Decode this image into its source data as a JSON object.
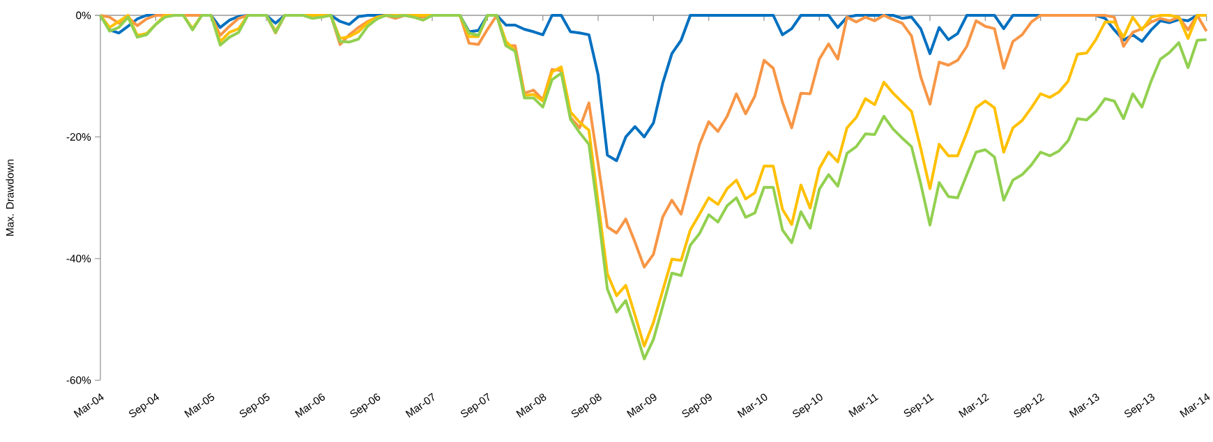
{
  "chart_data": {
    "type": "line",
    "ylabel": "Max. Drawdown",
    "ylim": [
      -60,
      0
    ],
    "yticks": [
      {
        "value": 0,
        "label": "0%"
      },
      {
        "value": -20,
        "label": "-20%"
      },
      {
        "value": -40,
        "label": "-40%"
      },
      {
        "value": -60,
        "label": "-60%"
      }
    ],
    "xlim": [
      "2004-03",
      "2014-03"
    ],
    "xticks": [
      {
        "value": "2004-03",
        "label": "Mar-04"
      },
      {
        "value": "2004-09",
        "label": "Sep-04"
      },
      {
        "value": "2005-03",
        "label": "Mar-05"
      },
      {
        "value": "2005-09",
        "label": "Sep-05"
      },
      {
        "value": "2006-03",
        "label": "Mar-06"
      },
      {
        "value": "2006-09",
        "label": "Sep-06"
      },
      {
        "value": "2007-03",
        "label": "Mar-07"
      },
      {
        "value": "2007-09",
        "label": "Sep-07"
      },
      {
        "value": "2008-03",
        "label": "Mar-08"
      },
      {
        "value": "2008-09",
        "label": "Sep-08"
      },
      {
        "value": "2009-03",
        "label": "Mar-09"
      },
      {
        "value": "2009-09",
        "label": "Sep-09"
      },
      {
        "value": "2010-03",
        "label": "Mar-10"
      },
      {
        "value": "2010-09",
        "label": "Sep-10"
      },
      {
        "value": "2011-03",
        "label": "Mar-11"
      },
      {
        "value": "2011-09",
        "label": "Sep-11"
      },
      {
        "value": "2012-03",
        "label": "Mar-12"
      },
      {
        "value": "2012-09",
        "label": "Sep-12"
      },
      {
        "value": "2013-03",
        "label": "Mar-13"
      },
      {
        "value": "2013-09",
        "label": "Sep-13"
      },
      {
        "value": "2014-03",
        "label": "Mar-14"
      }
    ],
    "x": [
      "2004-03",
      "2004-04",
      "2004-05",
      "2004-06",
      "2004-07",
      "2004-08",
      "2004-09",
      "2004-10",
      "2004-11",
      "2004-12",
      "2005-01",
      "2005-02",
      "2005-03",
      "2005-04",
      "2005-05",
      "2005-06",
      "2005-07",
      "2005-08",
      "2005-09",
      "2005-10",
      "2005-11",
      "2005-12",
      "2006-01",
      "2006-02",
      "2006-03",
      "2006-04",
      "2006-05",
      "2006-06",
      "2006-07",
      "2006-08",
      "2006-09",
      "2006-10",
      "2006-11",
      "2006-12",
      "2007-01",
      "2007-02",
      "2007-03",
      "2007-04",
      "2007-05",
      "2007-06",
      "2007-07",
      "2007-08",
      "2007-09",
      "2007-10",
      "2007-11",
      "2007-12",
      "2008-01",
      "2008-02",
      "2008-03",
      "2008-04",
      "2008-05",
      "2008-06",
      "2008-07",
      "2008-08",
      "2008-09",
      "2008-10",
      "2008-11",
      "2008-12",
      "2009-01",
      "2009-02",
      "2009-03",
      "2009-04",
      "2009-05",
      "2009-06",
      "2009-07",
      "2009-08",
      "2009-09",
      "2009-10",
      "2009-11",
      "2009-12",
      "2010-01",
      "2010-02",
      "2010-03",
      "2010-04",
      "2010-05",
      "2010-06",
      "2010-07",
      "2010-08",
      "2010-09",
      "2010-10",
      "2010-11",
      "2010-12",
      "2011-01",
      "2011-02",
      "2011-03",
      "2011-04",
      "2011-05",
      "2011-06",
      "2011-07",
      "2011-08",
      "2011-09",
      "2011-10",
      "2011-11",
      "2011-12",
      "2012-01",
      "2012-02",
      "2012-03",
      "2012-04",
      "2012-05",
      "2012-06",
      "2012-07",
      "2012-08",
      "2012-09",
      "2012-10",
      "2012-11",
      "2012-12",
      "2013-01",
      "2013-02",
      "2013-03",
      "2013-04",
      "2013-05",
      "2013-06",
      "2013-07",
      "2013-08",
      "2013-09",
      "2013-10",
      "2013-11",
      "2013-12",
      "2014-01",
      "2014-02",
      "2014-03"
    ],
    "series": [
      {
        "color": "#0070c0",
        "values": [
          0,
          -2.4,
          -2.9,
          -1.8,
          -0.6,
          0,
          0,
          0,
          0,
          0,
          0,
          0,
          0,
          -2.0,
          -0.8,
          -0.2,
          0,
          0,
          0,
          -1.3,
          0,
          0,
          0,
          0,
          0,
          0,
          -1.0,
          -1.5,
          -0.2,
          0,
          0,
          0,
          0,
          0,
          0,
          0,
          0,
          0,
          0,
          0,
          -2.7,
          -2.5,
          0,
          0,
          -1.6,
          -1.6,
          -2.3,
          -2.7,
          -3.2,
          0,
          0,
          -2.7,
          -2.9,
          -3.2,
          -9.8,
          -23.0,
          -23.9,
          -20.0,
          -18.3,
          -20.0,
          -17.7,
          -11.2,
          -6.3,
          -4.1,
          0,
          0,
          0,
          0,
          0,
          0,
          0,
          0,
          0,
          0,
          -3.2,
          -2.2,
          0,
          0,
          0,
          0,
          -2.0,
          -0.3,
          0,
          0,
          0,
          0,
          0,
          -0.5,
          -0.3,
          -2.2,
          -6.3,
          -2.0,
          -4.0,
          -3.0,
          0,
          0,
          0,
          0,
          -2.2,
          0,
          0,
          0,
          0,
          0,
          0,
          0,
          0,
          0,
          0,
          -0.5,
          -2.4,
          -4.1,
          -3.2,
          -4.3,
          -2.4,
          -0.9,
          -1.2,
          -0.7,
          -0.9,
          0,
          0
        ]
      },
      {
        "color": "#f79646",
        "values": [
          0,
          -0.3,
          -1.3,
          -0.3,
          -1.7,
          -0.6,
          0,
          0,
          0,
          0,
          0,
          0,
          0,
          -3.3,
          -1.8,
          -0.5,
          0,
          0,
          0,
          -2.9,
          0,
          0,
          0,
          0,
          0,
          0,
          -4.8,
          -3.2,
          -2.0,
          -1.0,
          -0.3,
          0,
          -0.5,
          0,
          -0.3,
          -0.3,
          0,
          0,
          0,
          0,
          -4.6,
          -4.8,
          -2.3,
          0,
          -5.0,
          -5.0,
          -12.8,
          -12.3,
          -13.9,
          -8.9,
          -9.1,
          -16.8,
          -18.5,
          -14.4,
          -24.4,
          -34.8,
          -35.8,
          -33.5,
          -37.3,
          -41.4,
          -39.3,
          -33.2,
          -30.4,
          -32.7,
          -26.9,
          -21.2,
          -17.5,
          -19.1,
          -16.6,
          -12.9,
          -16.2,
          -13.3,
          -7.4,
          -8.7,
          -14.3,
          -18.5,
          -12.8,
          -12.9,
          -7.2,
          -4.7,
          -7.2,
          -0.3,
          -1.1,
          -0.3,
          -0.9,
          0,
          -0.7,
          -1.3,
          -3.4,
          -10.1,
          -14.6,
          -7.7,
          -8.2,
          -7.4,
          -5.1,
          -0.9,
          -1.8,
          -2.2,
          -8.7,
          -4.3,
          -3.2,
          -1.1,
          0,
          0,
          0,
          0,
          0,
          0,
          0,
          0,
          -0.3,
          -5.1,
          -2.8,
          -2.2,
          -1.1,
          -0.5,
          -0.9,
          -0.3,
          -2.4,
          0,
          -2.6
        ]
      },
      {
        "color": "#ffc000",
        "values": [
          0,
          -2.0,
          -1.0,
          0,
          -3.3,
          -3.0,
          -1.5,
          0,
          0,
          0,
          -2.2,
          0,
          0,
          -4.3,
          -2.8,
          -2.2,
          0,
          0,
          0,
          -2.6,
          0,
          0,
          0,
          0,
          0,
          0,
          -3.8,
          -3.5,
          -2.7,
          -1.2,
          -0.3,
          0,
          0,
          0,
          0,
          0,
          0,
          0,
          0,
          0,
          -3.5,
          -3.5,
          0,
          0,
          -4.3,
          -5.8,
          -13.2,
          -13.0,
          -14.1,
          -9.3,
          -8.5,
          -15.9,
          -17.6,
          -18.9,
          -30.8,
          -42.5,
          -46.1,
          -44.4,
          -49.3,
          -54.4,
          -50.5,
          -45.3,
          -40.1,
          -40.3,
          -35.3,
          -32.7,
          -30.0,
          -31.1,
          -28.5,
          -27.1,
          -30.2,
          -29.2,
          -24.8,
          -24.8,
          -31.9,
          -34.4,
          -27.9,
          -31.7,
          -25.2,
          -22.5,
          -24.1,
          -18.5,
          -16.8,
          -13.7,
          -14.7,
          -11.0,
          -12.8,
          -14.3,
          -15.8,
          -21.9,
          -28.5,
          -21.2,
          -23.1,
          -23.1,
          -19.3,
          -15.2,
          -14.1,
          -15.2,
          -22.5,
          -18.5,
          -17.3,
          -15.2,
          -12.9,
          -13.5,
          -12.6,
          -10.8,
          -6.4,
          -6.2,
          -4.0,
          -1.1,
          -1.1,
          -3.6,
          -0.3,
          -2.4,
          -0.3,
          0,
          0,
          -0.3,
          -3.8,
          0,
          0
        ]
      },
      {
        "color": "#92d050",
        "values": [
          0,
          -2.6,
          -2.0,
          -0.3,
          -3.6,
          -3.2,
          -1.5,
          -0.3,
          0,
          0,
          -2.4,
          0,
          0,
          -4.9,
          -3.6,
          -2.8,
          0,
          0,
          0,
          -2.8,
          0,
          0,
          0,
          -0.5,
          -0.3,
          0,
          -4.3,
          -4.4,
          -3.9,
          -1.8,
          -0.6,
          0,
          -0.2,
          0,
          -0.3,
          -0.8,
          0,
          0,
          0,
          0,
          -2.9,
          -3.3,
          0,
          0,
          -5.0,
          -5.9,
          -13.6,
          -13.6,
          -15.1,
          -10.6,
          -9.5,
          -17.1,
          -19.3,
          -21.2,
          -32.6,
          -45.0,
          -48.8,
          -46.9,
          -51.6,
          -56.5,
          -53.3,
          -47.9,
          -42.4,
          -42.8,
          -37.8,
          -35.9,
          -32.8,
          -34.0,
          -31.3,
          -30.0,
          -33.2,
          -32.5,
          -28.3,
          -28.3,
          -35.3,
          -37.4,
          -32.3,
          -35.0,
          -28.6,
          -26.2,
          -28.1,
          -22.7,
          -21.6,
          -19.5,
          -19.6,
          -16.6,
          -18.7,
          -20.2,
          -21.6,
          -27.7,
          -34.5,
          -27.5,
          -29.8,
          -30.0,
          -26.2,
          -22.5,
          -22.1,
          -23.3,
          -30.4,
          -27.1,
          -26.2,
          -24.6,
          -22.5,
          -23.1,
          -22.3,
          -20.6,
          -17.0,
          -17.2,
          -15.8,
          -13.7,
          -14.1,
          -17.0,
          -12.9,
          -15.1,
          -10.8,
          -7.2,
          -6.1,
          -4.5,
          -8.6,
          -4.1,
          -4.0
        ]
      }
    ]
  }
}
